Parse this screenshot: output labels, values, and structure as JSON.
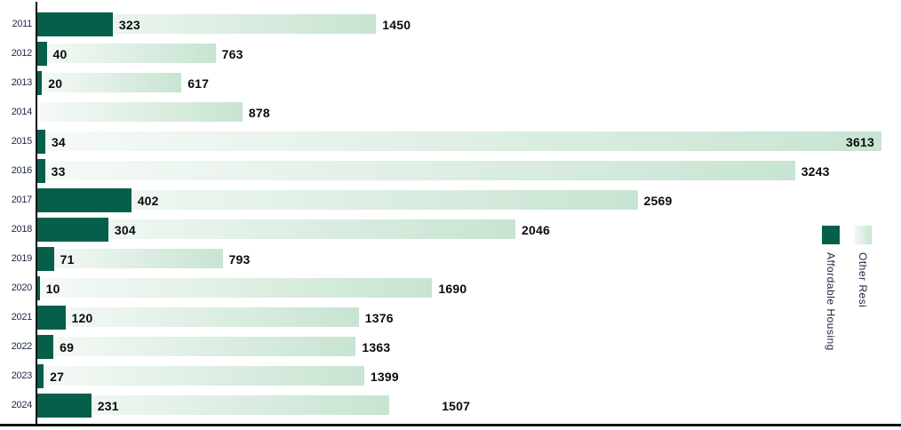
{
  "chart_data": {
    "type": "bar",
    "orientation": "horizontal",
    "title": "",
    "xlabel": "",
    "ylabel": "",
    "categories": [
      "2011",
      "2012",
      "2013",
      "2014",
      "2015",
      "2016",
      "2017",
      "2018",
      "2019",
      "2020",
      "2021",
      "2022",
      "2023",
      "2024"
    ],
    "series": [
      {
        "name": "Affordable Housing",
        "color": "#065f4b",
        "values": [
          323,
          40,
          20,
          null,
          34,
          33,
          402,
          304,
          71,
          10,
          120,
          69,
          27,
          231
        ]
      },
      {
        "name": "Other Resi",
        "gradient": [
          "#f6faf7",
          "#c8e4d2"
        ],
        "values": [
          1450,
          763,
          617,
          878,
          3613,
          3243,
          2569,
          2046,
          793,
          1690,
          1376,
          1363,
          1399,
          1507
        ]
      }
    ],
    "xlim": [
      0,
      3700
    ],
    "grid": false,
    "value_labels": "end-of-bar",
    "legend_position": "right-middle",
    "label_offsets": {
      "2024": 52
    }
  },
  "legend": {
    "items": [
      {
        "label": "Affordable Housing",
        "swatch": "solid"
      },
      {
        "label": "Other Resi",
        "swatch": "gradient"
      }
    ]
  },
  "colors": {
    "affordable": "#065f4b",
    "other_gradient_start": "#f6faf7",
    "other_gradient_end": "#c8e4d2",
    "axis": "#0a0a0a",
    "year_text": "#1c2742",
    "value_text": "#0b0b0b"
  }
}
